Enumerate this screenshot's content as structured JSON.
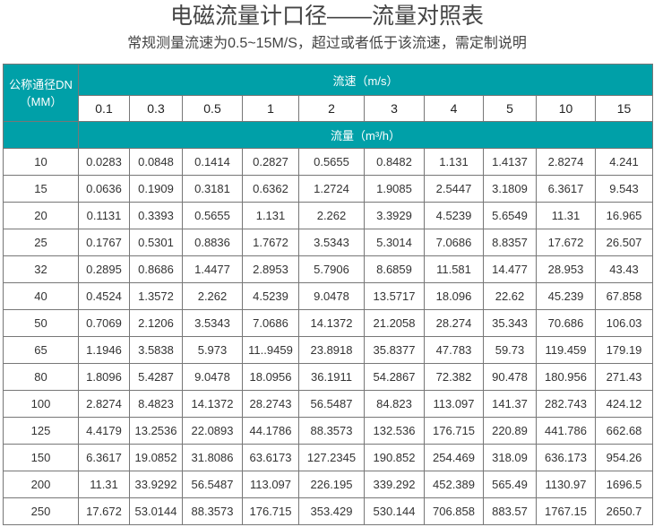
{
  "title": "电磁流量计口径——流量对照表",
  "subtitle": "常规测量流速为0.5~15M/S，超过或者低于该流速，需定制说明",
  "colors": {
    "header_bg": "#00a0a8",
    "header_text": "#ffffff",
    "border": "#777777"
  },
  "table": {
    "dn_header_line1": "公称通径DN",
    "dn_header_line2": "（MM）",
    "velocity_header": "流速（m/s）",
    "flow_header": "流量（m³/h）",
    "velocities": [
      "0.1",
      "0.3",
      "0.5",
      "1",
      "2",
      "3",
      "4",
      "5",
      "10",
      "15"
    ],
    "rows": [
      [
        "10",
        "0.0283",
        "0.0848",
        "0.1414",
        "0.2827",
        "0.5655",
        "0.8482",
        "1.131",
        "1.4137",
        "2.8274",
        "4.241"
      ],
      [
        "15",
        "0.0636",
        "0.1909",
        "0.3181",
        "0.6362",
        "1.2724",
        "1.9085",
        "2.5447",
        "3.1809",
        "6.3617",
        "9.543"
      ],
      [
        "20",
        "0.1131",
        "0.3393",
        "0.5655",
        "1.131",
        "2.262",
        "3.3929",
        "4.5239",
        "5.6549",
        "11.31",
        "16.965"
      ],
      [
        "25",
        "0.1767",
        "0.5301",
        "0.8836",
        "1.7672",
        "3.5343",
        "5.3014",
        "7.0686",
        "8.8357",
        "17.672",
        "26.507"
      ],
      [
        "32",
        "0.2895",
        "0.8686",
        "1.4477",
        "2.8953",
        "5.7906",
        "8.6859",
        "11.581",
        "14.477",
        "28.953",
        "43.43"
      ],
      [
        "40",
        "0.4524",
        "1.3572",
        "2.262",
        "4.5239",
        "9.0478",
        "13.5717",
        "18.096",
        "22.62",
        "45.239",
        "67.858"
      ],
      [
        "50",
        "0.7069",
        "2.1206",
        "3.5343",
        "7.0686",
        "14.1372",
        "21.2058",
        "28.274",
        "35.343",
        "70.686",
        "106.03"
      ],
      [
        "65",
        "1.1946",
        "3.5838",
        "5.973",
        "11..9459",
        "23.8918",
        "35.8377",
        "47.783",
        "59.73",
        "119.459",
        "179.19"
      ],
      [
        "80",
        "1.8096",
        "5.4287",
        "9.0478",
        "18.0956",
        "36.1911",
        "54.2867",
        "72.382",
        "90.478",
        "180.956",
        "271.43"
      ],
      [
        "100",
        "2.8274",
        "8.4823",
        "14.1372",
        "28.2743",
        "56.5487",
        "84.823",
        "113.097",
        "141.37",
        "282.743",
        "424.12"
      ],
      [
        "125",
        "4.4179",
        "13.2536",
        "22.0893",
        "44.1786",
        "88.3573",
        "132.536",
        "176.715",
        "220.89",
        "441.786",
        "662.68"
      ],
      [
        "150",
        "6.3617",
        "19.0852",
        "31.8086",
        "63.6173",
        "127.2345",
        "190.852",
        "254.469",
        "318.09",
        "636.173",
        "954.26"
      ],
      [
        "200",
        "11.31",
        "33.9292",
        "56.5487",
        "113.097",
        "226.195",
        "339.292",
        "452.389",
        "565.49",
        "1130.97",
        "1696.5"
      ],
      [
        "250",
        "17.672",
        "53.0144",
        "88.3573",
        "176.715",
        "353.429",
        "530.144",
        "706.858",
        "883.57",
        "1767.15",
        "2650.7"
      ]
    ]
  }
}
